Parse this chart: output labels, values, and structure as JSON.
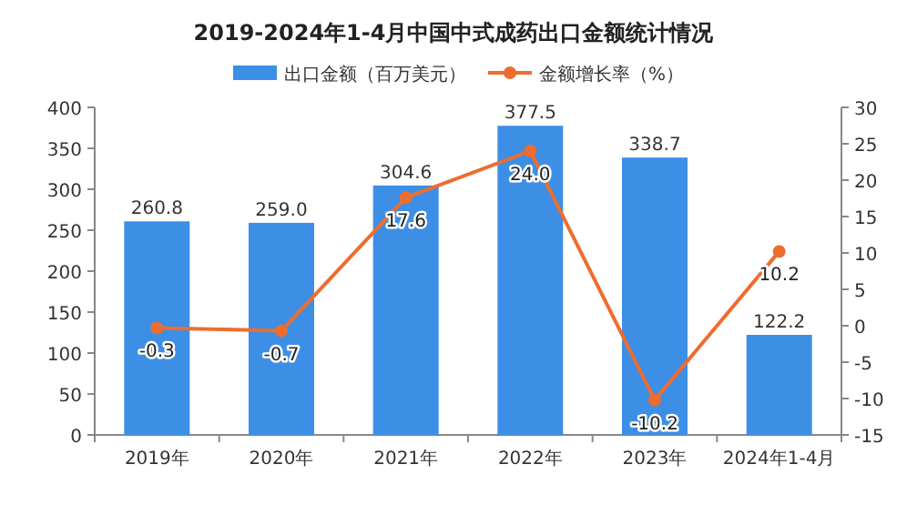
{
  "chart_data": {
    "type": "bar",
    "title": "2019-2024年1-4月中国中式成药出口金额统计情况",
    "categories": [
      "2019年",
      "2020年",
      "2021年",
      "2022年",
      "2023年",
      "2024年1-4月"
    ],
    "series": [
      {
        "name": "出口金额（百万美元）",
        "color": "#3d8fe6",
        "values": [
          260.8,
          259.0,
          304.6,
          377.5,
          338.7,
          122.2
        ],
        "value_labels": [
          "260.8",
          "259.0",
          "304.6",
          "377.5",
          "338.7",
          "122.2"
        ]
      },
      {
        "name": "金额增长率（%）",
        "type": "line",
        "axis": "y2",
        "color": "#ed6d2f",
        "values": [
          -0.3,
          -0.7,
          17.6,
          24.0,
          -10.2,
          10.2
        ],
        "value_labels": [
          "-0.3",
          "-0.7",
          "17.6",
          "24.0",
          "-10.2",
          "10.2"
        ]
      }
    ],
    "ylim": [
      0,
      400
    ],
    "yticks": [
      0,
      50,
      100,
      150,
      200,
      250,
      300,
      350,
      400
    ],
    "y2lim": [
      -15,
      30
    ],
    "y2ticks": [
      -15,
      -10,
      -5,
      0,
      5,
      10,
      15,
      20,
      25,
      30
    ],
    "legend": "top",
    "marker": "circle",
    "grid": false
  }
}
